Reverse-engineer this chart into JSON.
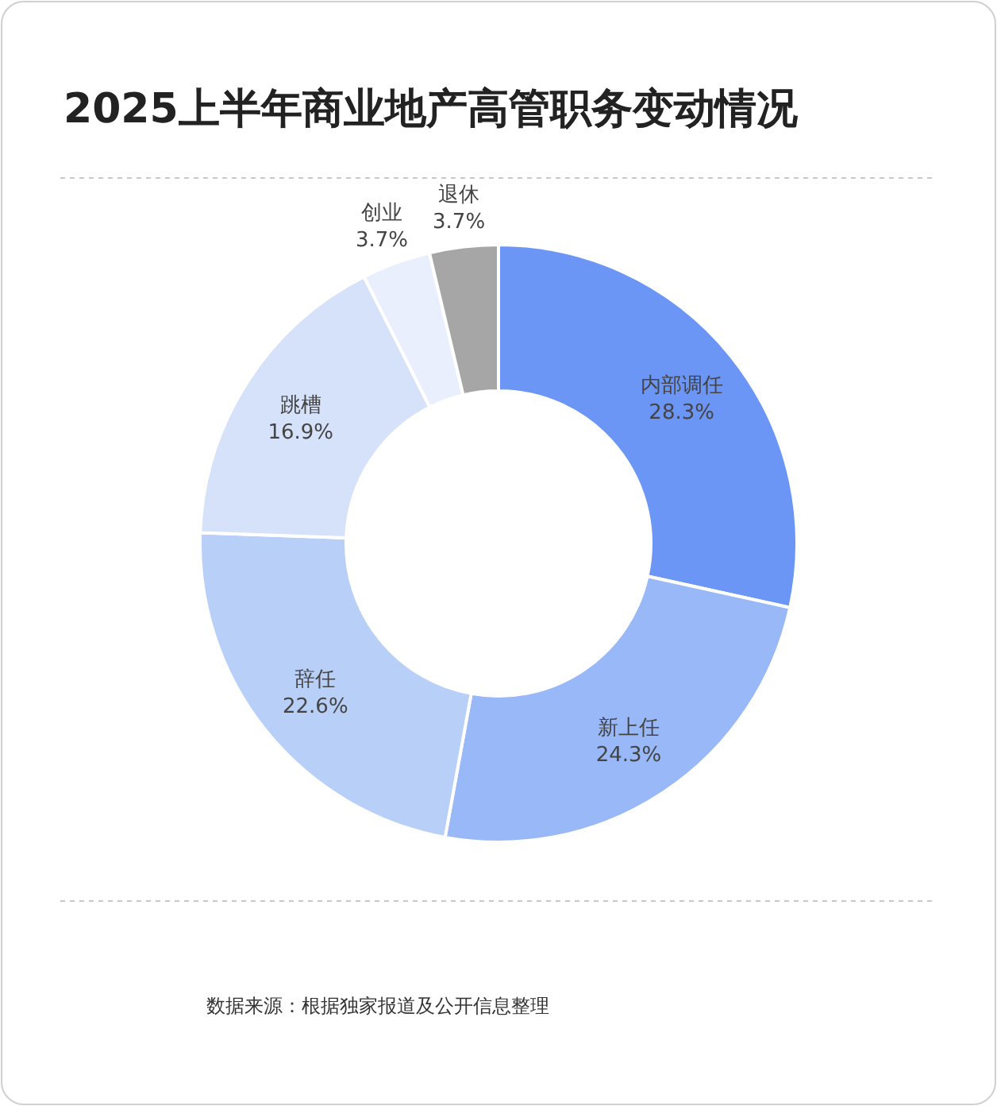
{
  "chart_data": {
    "type": "donut",
    "title": "2025上半年商业地产高管职务变动情况",
    "categories": [
      "内部调任",
      "新上任",
      "辞任",
      "跳槽",
      "创业",
      "退休"
    ],
    "values": [
      28.3,
      24.3,
      22.6,
      16.9,
      3.7,
      3.7
    ],
    "colors": [
      "#6b96f5",
      "#98b8f8",
      "#b8cff8",
      "#d6e2fa",
      "#e9effc",
      "#a6a6a6"
    ],
    "value_labels": [
      "28.3%",
      "24.3%",
      "22.6%",
      "16.9%",
      "3.7%",
      "3.7%"
    ],
    "annotations": [
      "数据来源：根据独家报道及公开信息整理"
    ]
  }
}
